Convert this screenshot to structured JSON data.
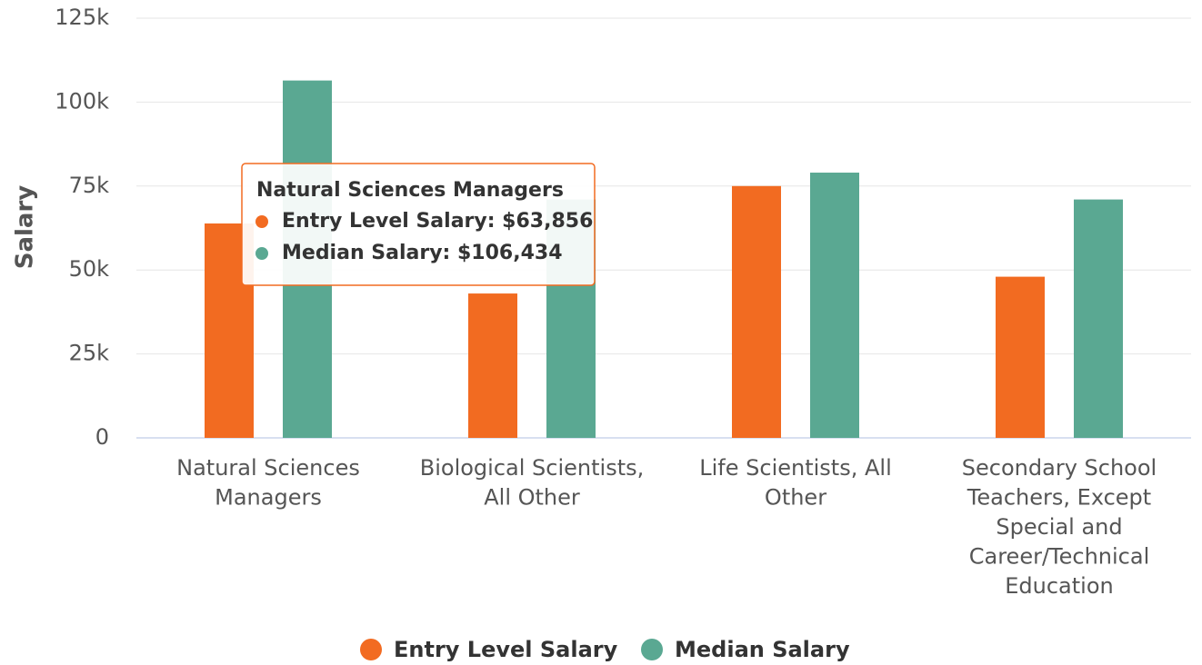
{
  "chart_data": {
    "type": "bar",
    "y_axis_label": "Salary",
    "categories": [
      "Natural Sciences Managers",
      "Biological Scientists, All Other",
      "Life Scientists, All Other",
      "Secondary School Teachers, Except Special and Career/Technical Education"
    ],
    "series": [
      {
        "name": "Entry Level Salary",
        "color": "#f26b21",
        "values": [
          63856,
          43000,
          75000,
          48000
        ]
      },
      {
        "name": "Median Salary",
        "color": "#5aa892",
        "values": [
          106434,
          71000,
          79000,
          71000
        ]
      }
    ],
    "ylim": [
      0,
      125000
    ],
    "yticks": [
      {
        "value": 0,
        "label": "0"
      },
      {
        "value": 25000,
        "label": "25k"
      },
      {
        "value": 50000,
        "label": "50k"
      },
      {
        "value": 75000,
        "label": "75k"
      },
      {
        "value": 100000,
        "label": "100k"
      },
      {
        "value": 125000,
        "label": "125k"
      }
    ],
    "grid": true,
    "legend": "bottom",
    "tooltip": {
      "title": "Natural Sciences Managers",
      "rows": [
        "Entry Level Salary: $63,856",
        "Median Salary: $106,434"
      ]
    }
  }
}
